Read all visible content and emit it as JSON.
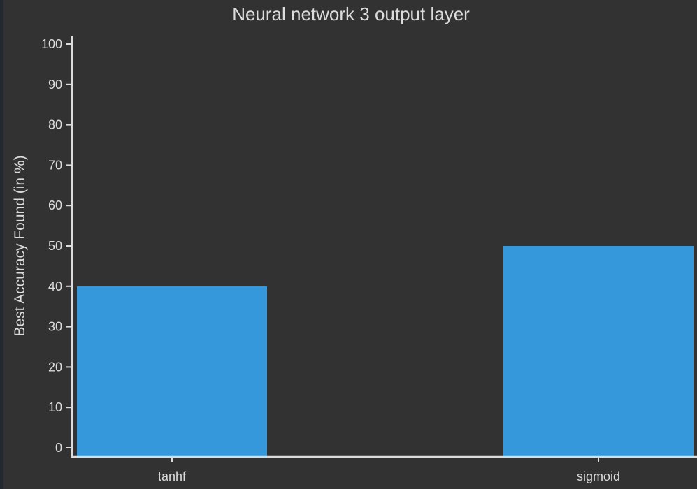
{
  "chart_data": {
    "type": "bar",
    "title": "Neural network 3 output layer",
    "xlabel": "",
    "ylabel": "Best Accuracy Found (in %)",
    "categories": [
      "tanhf",
      "sigmoid"
    ],
    "values": [
      40,
      50
    ],
    "ylim": [
      0,
      100
    ],
    "yticks": [
      0,
      10,
      20,
      30,
      40,
      50,
      60,
      70,
      80,
      90,
      100
    ],
    "grid": false,
    "legend": "none",
    "colors": {
      "bar": "#3498db",
      "background": "#323232",
      "axis": "#dcdcdc",
      "text": "#dcdcdc"
    }
  }
}
